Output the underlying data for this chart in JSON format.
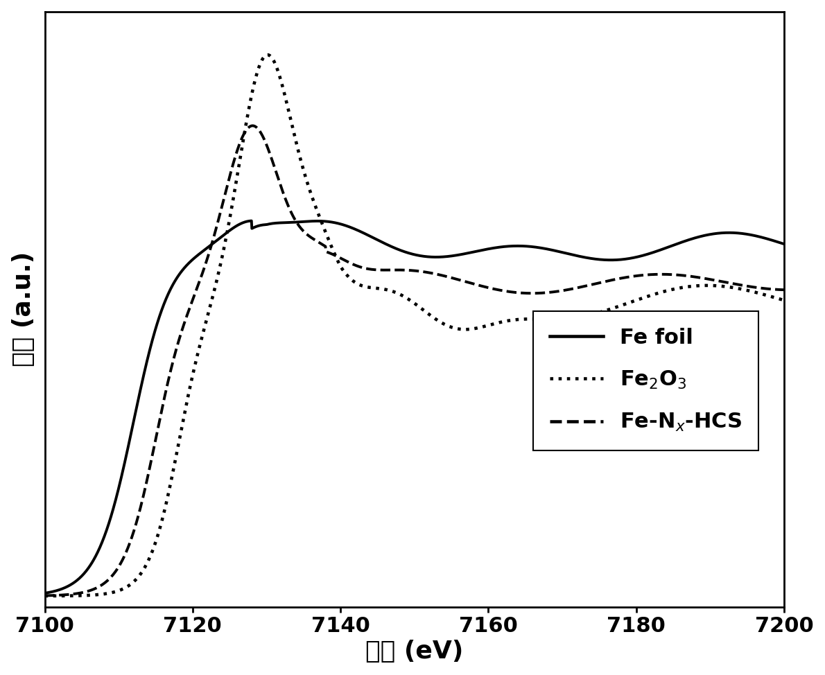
{
  "x_min": 7100,
  "x_max": 7200,
  "x_ticks": [
    7100,
    7120,
    7140,
    7160,
    7180,
    7200
  ],
  "xlabel": "能量 (eV)",
  "ylabel": "强度 (a.u.)",
  "xlabel_fontsize": 26,
  "ylabel_fontsize": 26,
  "tick_fontsize": 22,
  "legend_fontsize": 22,
  "line_color": "#000000",
  "line_width": 2.8,
  "background_color": "#ffffff",
  "legend_labels": [
    "Fe foil",
    "Fe$_2$O$_3$",
    "Fe-N$_x$-HCS"
  ],
  "legend_linestyles": [
    "solid",
    "dotted",
    "dashed"
  ]
}
